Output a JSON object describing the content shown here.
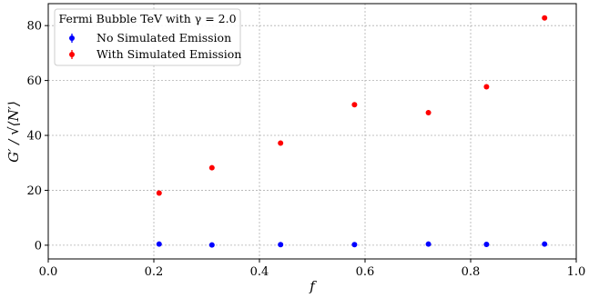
{
  "chart_data": {
    "type": "scatter",
    "xlabel": "f",
    "ylabel": "G′ / √⟨N′⟩",
    "xlim": [
      0.0,
      1.0
    ],
    "ylim": [
      -5,
      88
    ],
    "x_ticks": [
      "0.0",
      "0.2",
      "0.4",
      "0.6",
      "0.8",
      "1.0"
    ],
    "y_ticks": [
      "0",
      "20",
      "40",
      "60",
      "80"
    ],
    "x_tick_values": [
      0.0,
      0.2,
      0.4,
      0.6,
      0.8,
      1.0
    ],
    "y_tick_values": [
      0,
      20,
      40,
      60,
      80
    ],
    "grid": true,
    "legend": {
      "placement": "top-left",
      "title": "Fermi Bubble TeV with γ = 2.0"
    },
    "series": [
      {
        "name": "No Simulated Emission",
        "color": "#0000ff",
        "x": [
          0.21,
          0.31,
          0.44,
          0.58,
          0.72,
          0.83,
          0.94
        ],
        "y": [
          0.4,
          0.1,
          0.2,
          0.2,
          0.4,
          0.3,
          0.4
        ],
        "yerr": [
          0.9,
          0.9,
          0.9,
          0.9,
          0.9,
          0.9,
          0.9
        ]
      },
      {
        "name": "With Simulated Emission",
        "color": "#ff0000",
        "x": [
          0.21,
          0.31,
          0.44,
          0.58,
          0.72,
          0.83,
          0.94
        ],
        "y": [
          19,
          28.2,
          37.2,
          51.2,
          48.3,
          57.7,
          82.8
        ],
        "yerr": [
          0.9,
          0.9,
          0.9,
          0.9,
          0.9,
          0.9,
          0.9
        ]
      }
    ]
  }
}
